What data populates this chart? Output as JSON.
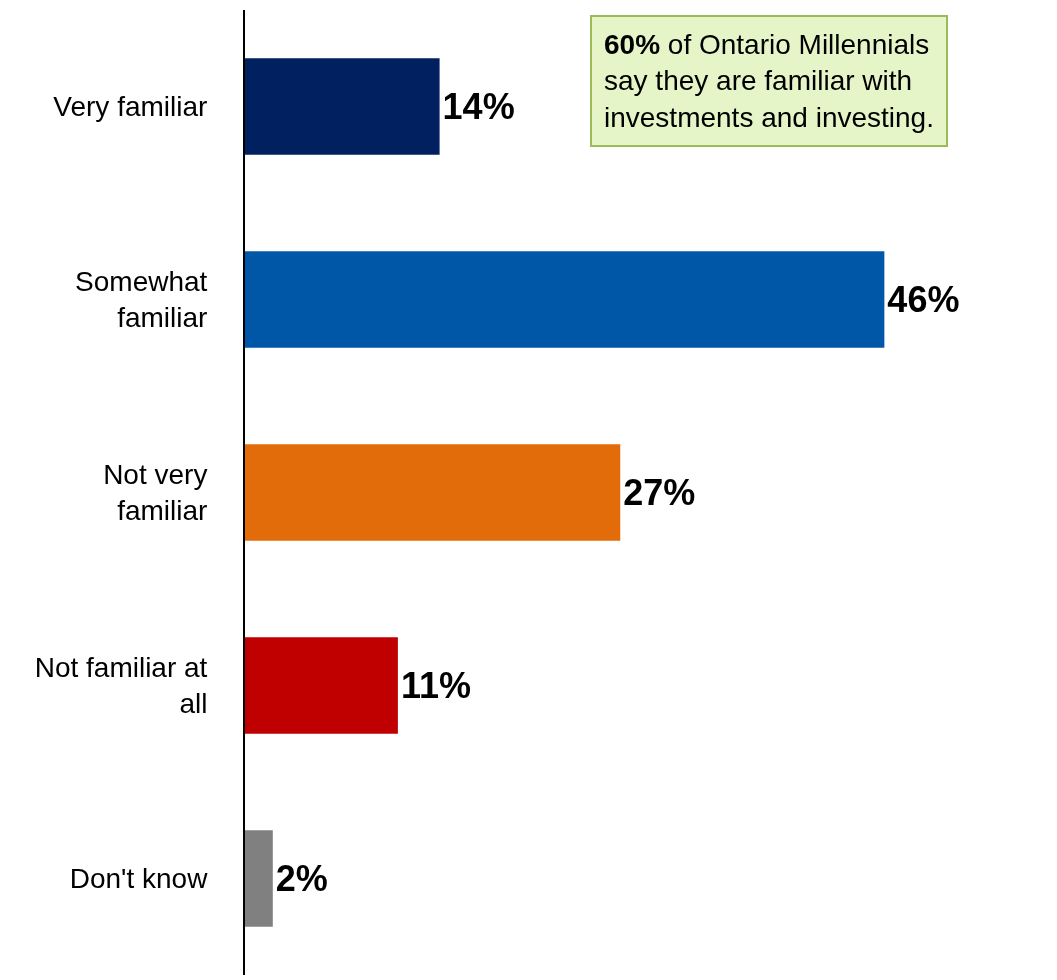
{
  "chart_data": {
    "type": "bar",
    "orientation": "horizontal",
    "categories": [
      "Very familiar",
      "Somewhat familiar",
      "Not very familiar",
      "Not familiar at all",
      "Don't know"
    ],
    "values": [
      14,
      46,
      27,
      11,
      2
    ],
    "colors": [
      "#002060",
      "#0057a8",
      "#e36c0a",
      "#c00000",
      "#808080"
    ],
    "value_labels": [
      "14%",
      "46%",
      "27%",
      "11%",
      "2%"
    ],
    "annotations": [
      "60% of Ontario Millennials say they are familiar with investments and investing."
    ]
  }
}
